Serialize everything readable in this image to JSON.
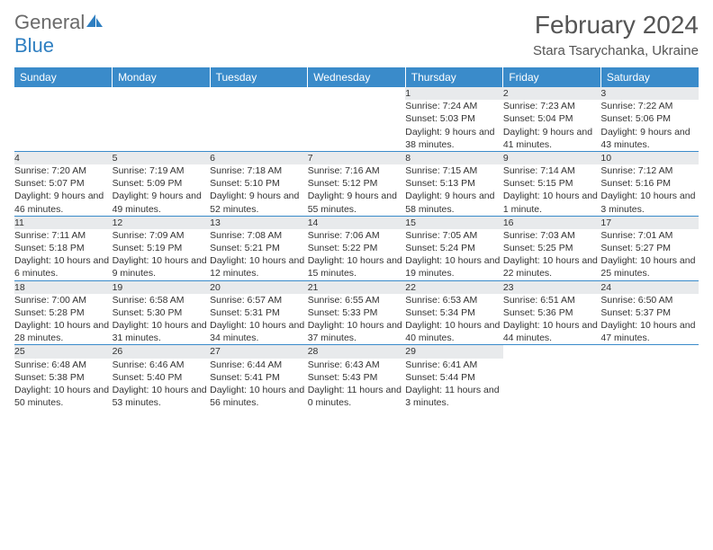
{
  "logo": {
    "text1": "General",
    "text2": "Blue"
  },
  "title": "February 2024",
  "location": "Stara Tsarychanka, Ukraine",
  "colors": {
    "header_bg": "#3a8bca",
    "header_text": "#ffffff",
    "daynum_bg": "#e8eaec",
    "rule": "#3a8bca",
    "body_text": "#333333",
    "logo_gray": "#6a6a6a",
    "logo_blue": "#2f7fc1"
  },
  "typography": {
    "title_fontsize": 28,
    "location_fontsize": 15,
    "dayheader_fontsize": 12,
    "cell_fontsize": 10.5
  },
  "day_headers": [
    "Sunday",
    "Monday",
    "Tuesday",
    "Wednesday",
    "Thursday",
    "Friday",
    "Saturday"
  ],
  "weeks": [
    [
      null,
      null,
      null,
      null,
      {
        "n": "1",
        "sunrise": "7:24 AM",
        "sunset": "5:03 PM",
        "daylight": "9 hours and 38 minutes."
      },
      {
        "n": "2",
        "sunrise": "7:23 AM",
        "sunset": "5:04 PM",
        "daylight": "9 hours and 41 minutes."
      },
      {
        "n": "3",
        "sunrise": "7:22 AM",
        "sunset": "5:06 PM",
        "daylight": "9 hours and 43 minutes."
      }
    ],
    [
      {
        "n": "4",
        "sunrise": "7:20 AM",
        "sunset": "5:07 PM",
        "daylight": "9 hours and 46 minutes."
      },
      {
        "n": "5",
        "sunrise": "7:19 AM",
        "sunset": "5:09 PM",
        "daylight": "9 hours and 49 minutes."
      },
      {
        "n": "6",
        "sunrise": "7:18 AM",
        "sunset": "5:10 PM",
        "daylight": "9 hours and 52 minutes."
      },
      {
        "n": "7",
        "sunrise": "7:16 AM",
        "sunset": "5:12 PM",
        "daylight": "9 hours and 55 minutes."
      },
      {
        "n": "8",
        "sunrise": "7:15 AM",
        "sunset": "5:13 PM",
        "daylight": "9 hours and 58 minutes."
      },
      {
        "n": "9",
        "sunrise": "7:14 AM",
        "sunset": "5:15 PM",
        "daylight": "10 hours and 1 minute."
      },
      {
        "n": "10",
        "sunrise": "7:12 AM",
        "sunset": "5:16 PM",
        "daylight": "10 hours and 3 minutes."
      }
    ],
    [
      {
        "n": "11",
        "sunrise": "7:11 AM",
        "sunset": "5:18 PM",
        "daylight": "10 hours and 6 minutes."
      },
      {
        "n": "12",
        "sunrise": "7:09 AM",
        "sunset": "5:19 PM",
        "daylight": "10 hours and 9 minutes."
      },
      {
        "n": "13",
        "sunrise": "7:08 AM",
        "sunset": "5:21 PM",
        "daylight": "10 hours and 12 minutes."
      },
      {
        "n": "14",
        "sunrise": "7:06 AM",
        "sunset": "5:22 PM",
        "daylight": "10 hours and 15 minutes."
      },
      {
        "n": "15",
        "sunrise": "7:05 AM",
        "sunset": "5:24 PM",
        "daylight": "10 hours and 19 minutes."
      },
      {
        "n": "16",
        "sunrise": "7:03 AM",
        "sunset": "5:25 PM",
        "daylight": "10 hours and 22 minutes."
      },
      {
        "n": "17",
        "sunrise": "7:01 AM",
        "sunset": "5:27 PM",
        "daylight": "10 hours and 25 minutes."
      }
    ],
    [
      {
        "n": "18",
        "sunrise": "7:00 AM",
        "sunset": "5:28 PM",
        "daylight": "10 hours and 28 minutes."
      },
      {
        "n": "19",
        "sunrise": "6:58 AM",
        "sunset": "5:30 PM",
        "daylight": "10 hours and 31 minutes."
      },
      {
        "n": "20",
        "sunrise": "6:57 AM",
        "sunset": "5:31 PM",
        "daylight": "10 hours and 34 minutes."
      },
      {
        "n": "21",
        "sunrise": "6:55 AM",
        "sunset": "5:33 PM",
        "daylight": "10 hours and 37 minutes."
      },
      {
        "n": "22",
        "sunrise": "6:53 AM",
        "sunset": "5:34 PM",
        "daylight": "10 hours and 40 minutes."
      },
      {
        "n": "23",
        "sunrise": "6:51 AM",
        "sunset": "5:36 PM",
        "daylight": "10 hours and 44 minutes."
      },
      {
        "n": "24",
        "sunrise": "6:50 AM",
        "sunset": "5:37 PM",
        "daylight": "10 hours and 47 minutes."
      }
    ],
    [
      {
        "n": "25",
        "sunrise": "6:48 AM",
        "sunset": "5:38 PM",
        "daylight": "10 hours and 50 minutes."
      },
      {
        "n": "26",
        "sunrise": "6:46 AM",
        "sunset": "5:40 PM",
        "daylight": "10 hours and 53 minutes."
      },
      {
        "n": "27",
        "sunrise": "6:44 AM",
        "sunset": "5:41 PM",
        "daylight": "10 hours and 56 minutes."
      },
      {
        "n": "28",
        "sunrise": "6:43 AM",
        "sunset": "5:43 PM",
        "daylight": "11 hours and 0 minutes."
      },
      {
        "n": "29",
        "sunrise": "6:41 AM",
        "sunset": "5:44 PM",
        "daylight": "11 hours and 3 minutes."
      },
      null,
      null
    ]
  ],
  "labels": {
    "sunrise": "Sunrise:",
    "sunset": "Sunset:",
    "daylight": "Daylight:"
  }
}
